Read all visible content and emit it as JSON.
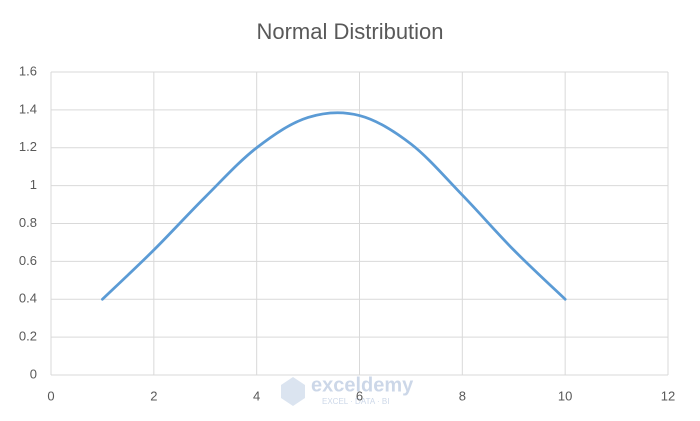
{
  "chart_data": {
    "type": "line",
    "title": "Normal Distribution",
    "x": [
      1,
      2,
      3,
      4,
      5,
      6,
      7,
      8,
      9,
      10
    ],
    "series": [
      {
        "color": "#5b9bd5",
        "values": [
          0.4,
          0.66,
          0.94,
          1.2,
          1.36,
          1.37,
          1.22,
          0.95,
          0.66,
          0.4
        ]
      }
    ],
    "xlim": [
      0,
      12
    ],
    "xticks": [
      0,
      2,
      4,
      6,
      8,
      10,
      12
    ],
    "ylim": [
      0,
      1.6
    ],
    "yticks": [
      0,
      0.2,
      0.4,
      0.6,
      0.8,
      1,
      1.2,
      1.4,
      1.6
    ],
    "grid": true,
    "smooth": true
  },
  "watermark": {
    "name": "exceldemy",
    "tagline": "EXCEL · DATA · BI"
  }
}
